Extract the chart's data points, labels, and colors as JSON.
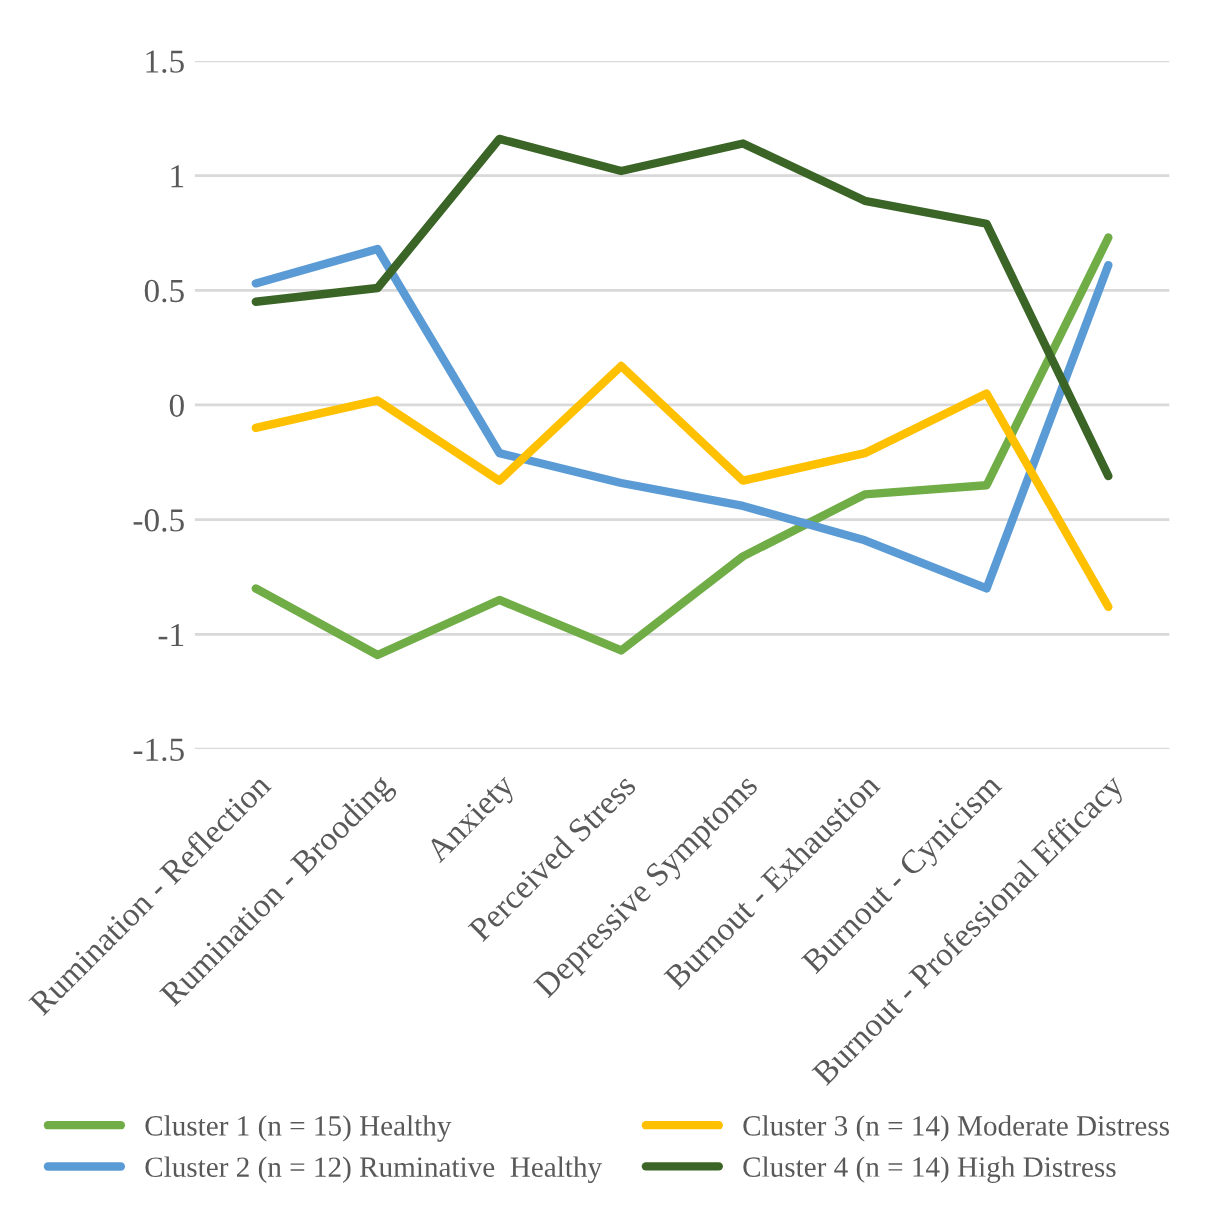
{
  "chart_data": {
    "type": "line",
    "categories": [
      "Rumination - Reflection",
      "Rumination - Brooding",
      "Anxiety",
      "Perceived Stress",
      "Depressive Symptoms",
      "Burnout - Exhaustion",
      "Burnout - Cynicism",
      "Burnout - Professional Efficacy"
    ],
    "series": [
      {
        "name": "Cluster 1 (n = 15) Healthy",
        "color": "#70ad47",
        "values": [
          -0.8,
          -1.09,
          -0.85,
          -1.07,
          -0.66,
          -0.39,
          -0.35,
          0.73
        ]
      },
      {
        "name": "Cluster 2 (n = 12) Ruminative  Healthy",
        "color": "#5b9bd5",
        "values": [
          0.53,
          0.68,
          -0.21,
          -0.34,
          -0.44,
          -0.59,
          -0.8,
          0.61
        ]
      },
      {
        "name": "Cluster 3 (n = 14) Moderate Distress",
        "color": "#ffc000",
        "values": [
          -0.1,
          0.02,
          -0.33,
          0.17,
          -0.33,
          -0.21,
          0.05,
          -0.88
        ]
      },
      {
        "name": "Cluster 4 (n = 14) High Distress",
        "color": "#3b6527",
        "values": [
          0.45,
          0.51,
          1.16,
          1.02,
          1.14,
          0.89,
          0.79,
          -0.31
        ]
      }
    ],
    "ylim": [
      -1.5,
      1.5
    ],
    "yticks": [
      -1.5,
      -1,
      -0.5,
      0,
      0.5,
      1,
      1.5
    ],
    "grid": "y",
    "legend": "bottom",
    "marker": "none",
    "line_style": "solid"
  }
}
